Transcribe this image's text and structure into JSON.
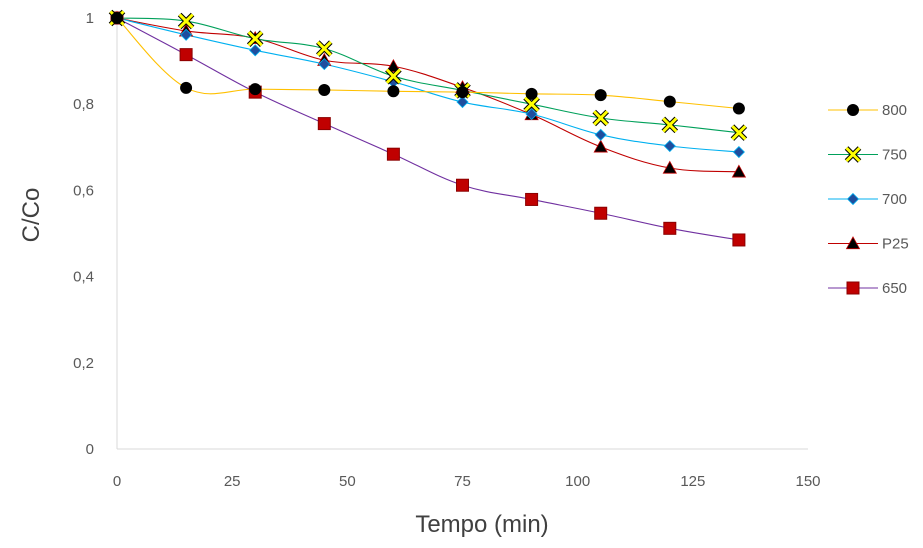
{
  "chart_data": {
    "type": "scatter",
    "title": "",
    "xlabel": "Tempo (min)",
    "ylabel": "C/Co",
    "xlim": [
      0,
      150
    ],
    "ylim": [
      0,
      1
    ],
    "x_ticks": [
      0,
      25,
      50,
      75,
      100,
      125,
      150
    ],
    "y_ticks": [
      0,
      0.2,
      0.4,
      0.6,
      0.8,
      1
    ],
    "x_tick_labels": [
      "0",
      "25",
      "50",
      "75",
      "100",
      "125",
      "150"
    ],
    "y_tick_labels": [
      "0",
      "0,2",
      "0,4",
      "0,6",
      "0,8",
      "1"
    ],
    "grid": false,
    "legend_position": "right",
    "x": [
      0,
      15,
      30,
      45,
      60,
      75,
      90,
      105,
      120,
      135
    ],
    "series": [
      {
        "name": "800",
        "marker": "circle",
        "color": "#ffc000",
        "marker_fill": "#000000",
        "values": [
          1,
          0.838,
          0.835,
          0.833,
          0.83,
          0.828,
          0.824,
          0.821,
          0.806,
          0.79
        ]
      },
      {
        "name": "750",
        "marker": "x",
        "color": "#00a05a",
        "marker_fill": "#ffff00",
        "values": [
          1,
          0.993,
          0.952,
          0.929,
          0.865,
          0.832,
          0.8,
          0.768,
          0.752,
          0.734
        ]
      },
      {
        "name": "700",
        "marker": "diamond",
        "color": "#00b0f0",
        "marker_fill": "#1f4e9e",
        "values": [
          1,
          0.961,
          0.925,
          0.893,
          0.852,
          0.805,
          0.777,
          0.729,
          0.703,
          0.689
        ]
      },
      {
        "name": "P25",
        "marker": "triangle",
        "color": "#c00000",
        "marker_fill": "#000000",
        "values": [
          1,
          0.97,
          0.953,
          0.902,
          0.888,
          0.839,
          0.776,
          0.701,
          0.652,
          0.643
        ]
      },
      {
        "name": "650",
        "marker": "square",
        "color": "#7030a0",
        "marker_fill": "#c00000",
        "values": [
          1,
          0.915,
          0.828,
          0.755,
          0.684,
          0.612,
          0.579,
          0.547,
          0.512,
          0.485
        ]
      }
    ]
  }
}
